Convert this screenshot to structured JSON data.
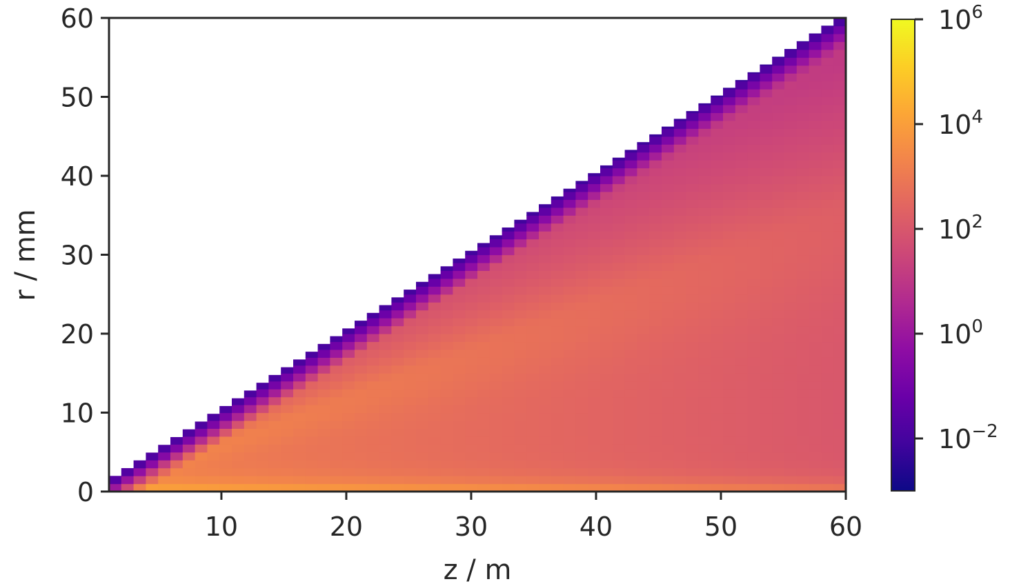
{
  "chart_data": {
    "type": "heatmap",
    "title": "",
    "xlabel": "z / m",
    "ylabel": "r / mm",
    "xlim": [
      1,
      60
    ],
    "ylim": [
      0,
      60
    ],
    "x_ticks": [
      10,
      20,
      30,
      40,
      50,
      60
    ],
    "x_tick_labels": [
      "10",
      "20",
      "30",
      "40",
      "50",
      "60"
    ],
    "y_ticks": [
      0,
      10,
      20,
      30,
      40,
      50,
      60
    ],
    "y_tick_labels": [
      "0",
      "10",
      "20",
      "30",
      "40",
      "50",
      "60"
    ],
    "grid": false,
    "colormap": "plasma",
    "color_scale": "log",
    "colorbar": {
      "range": [
        0.001,
        1000000
      ],
      "ticks": [
        0.01,
        1,
        100,
        10000,
        1000000
      ],
      "tick_labels": [
        {
          "base": "10",
          "exp": "−2"
        },
        {
          "base": "10",
          "exp": "0"
        },
        {
          "base": "10",
          "exp": "2"
        },
        {
          "base": "10",
          "exp": "4"
        },
        {
          "base": "10",
          "exp": "6"
        }
      ]
    },
    "grid_cells": {
      "z_bins": 60,
      "z_range": [
        1,
        60
      ],
      "r_bin_width_mm": 1
    },
    "boundary_r_mm_per_z_m": 1.0,
    "field_description": {
      "core_value_near_axis": 30000,
      "bulk_value_small_z": 1500,
      "bulk_value_large_z": 100,
      "mid_band_value": 300,
      "upper_region_value": 20,
      "edge_value": 0.005
    }
  }
}
